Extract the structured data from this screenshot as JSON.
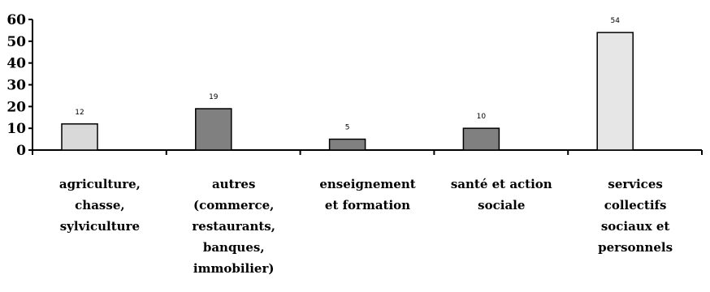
{
  "chart_data": {
    "type": "bar",
    "categories": [
      [
        "agriculture,",
        "chasse,",
        "sylviculture"
      ],
      [
        "autres",
        "(commerce,",
        "restaurants,",
        "banques,",
        "immobilier)"
      ],
      [
        "enseignement",
        "et formation"
      ],
      [
        "santé et action",
        "sociale"
      ],
      [
        "services",
        "collectifs",
        "sociaux et",
        "personnels"
      ]
    ],
    "values": [
      12,
      19,
      5,
      10,
      54
    ],
    "data_labels": [
      "12",
      "19",
      "5",
      "10",
      "54"
    ],
    "bar_colors": [
      "#d9d9d9",
      "#808080",
      "#808080",
      "#808080",
      "#e6e6e6"
    ],
    "ylim": [
      0,
      60
    ],
    "yticks": [
      "60",
      "50",
      "40",
      "30",
      "20",
      "10",
      "0"
    ],
    "title": "",
    "xlabel": "",
    "ylabel": "",
    "grid": false,
    "legend": "none"
  }
}
